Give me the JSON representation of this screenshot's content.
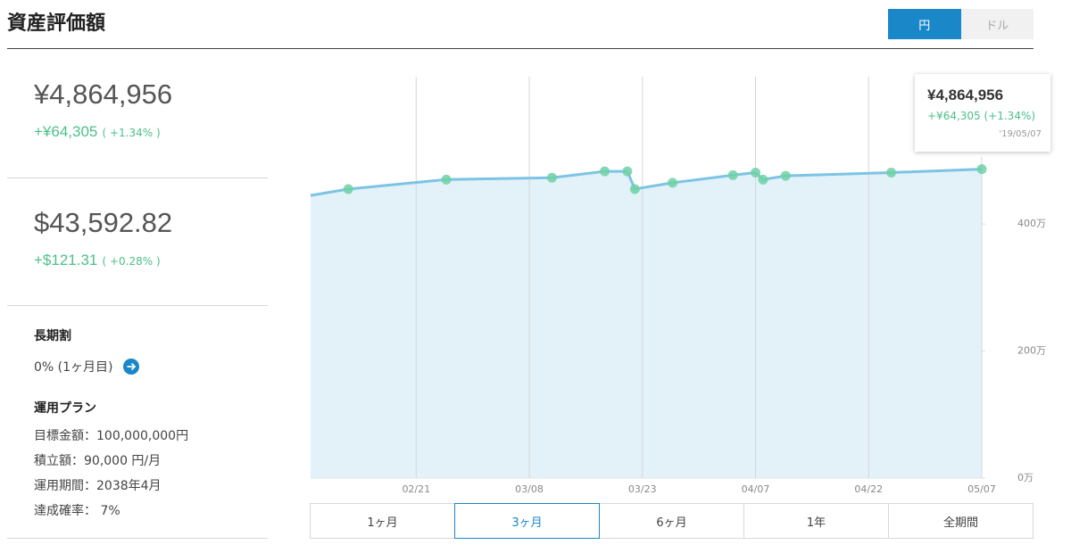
{
  "header": {
    "title": "資産評価額",
    "currency_toggle": [
      "円",
      "ドル"
    ],
    "selected_currency": 0
  },
  "summary": [
    {
      "amount": "¥4,864,956",
      "change": "+¥64,305",
      "change_pct": "( +1.34% )"
    },
    {
      "amount": "$43,592.82",
      "change": "+$121.31",
      "change_pct": "( +0.28% )"
    }
  ],
  "long_term_discount": {
    "title": "長期割",
    "value": "0% (1ヶ月目)"
  },
  "plan": {
    "title": "運用プラン",
    "items": [
      "目標金額：100,000,000円",
      "積立額：90,000 円/月",
      "運用期間：2038年4月",
      "達成確率： 7%"
    ]
  },
  "tooltip": {
    "amount": "¥4,864,956",
    "change": "+¥64,305 (+1.34%)",
    "date": "'19/05/07"
  },
  "chart_data": {
    "type": "line",
    "x": [
      "02/07",
      "02/12",
      "02/25",
      "03/11",
      "03/18",
      "03/21",
      "03/22",
      "03/27",
      "04/04",
      "04/07",
      "04/08",
      "04/11",
      "04/25",
      "05/07"
    ],
    "values": [
      445,
      455,
      470,
      473,
      483,
      483,
      455,
      465,
      477,
      481,
      470,
      476,
      481,
      486.4956
    ],
    "color": "#7cc4e4",
    "fill": "#e3f1f9",
    "marker_color": "#6fd1a6",
    "xlim": [
      "02/07",
      "05/07"
    ],
    "xticks": [
      "02/21",
      "03/08",
      "03/23",
      "04/07",
      "04/22",
      "05/07"
    ],
    "ylim": [
      0,
      632
    ],
    "yticks": [
      {
        "value": 0,
        "label": "0万"
      },
      {
        "value": 200,
        "label": "200万"
      },
      {
        "value": 400,
        "label": "400万"
      }
    ],
    "grid": "x"
  },
  "period_buttons": [
    "1ヶ月",
    "3ヶ月",
    "6ヶ月",
    "1年",
    "全期間"
  ],
  "selected_period": 1
}
